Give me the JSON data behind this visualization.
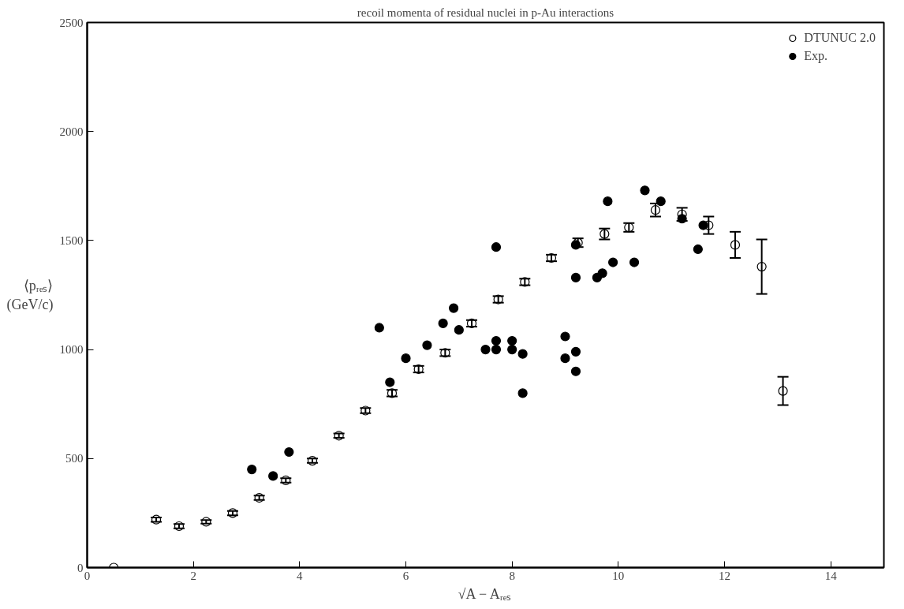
{
  "chart_data": {
    "type": "scatter",
    "title": "recoil momenta of residual nuclei in p-Au interactions",
    "xlabel": "√A − Aᵣₑₛ",
    "ylabel": "⟨pᵣₑₛ⟩\n(GeV/c)",
    "xlim": [
      0,
      15
    ],
    "ylim": [
      0,
      2500
    ],
    "xticks": [
      0,
      2,
      4,
      6,
      8,
      10,
      12,
      14
    ],
    "yticks": [
      0,
      500,
      1000,
      1500,
      2000,
      2500
    ],
    "legend": "top right",
    "grid": false,
    "marker": "circle",
    "series": [
      {
        "name": "DTUNUC 2.0",
        "color": "#000000",
        "x": [
          0.5,
          1.3,
          1.73,
          2.24,
          2.74,
          3.24,
          3.74,
          4.24,
          4.74,
          5.24,
          5.74,
          6.24,
          6.74,
          7.24,
          7.74,
          8.24,
          8.74,
          9.24,
          9.74,
          10.2,
          10.7,
          11.2,
          11.7,
          12.2,
          12.7,
          13.1
        ],
        "values": [
          0,
          220,
          190,
          210,
          250,
          320,
          400,
          490,
          605,
          720,
          800,
          910,
          985,
          1120,
          1230,
          1310,
          1420,
          1490,
          1530,
          1560,
          1640,
          1620,
          1570,
          1480,
          1380,
          810
        ],
        "errors": [
          null,
          10,
          10,
          8,
          10,
          10,
          10,
          10,
          10,
          12,
          15,
          15,
          15,
          15,
          15,
          15,
          15,
          20,
          25,
          20,
          30,
          30,
          40,
          60,
          125,
          65
        ]
      },
      {
        "name": "Exp.",
        "color": "#000000",
        "x": [
          3.1,
          3.5,
          3.8,
          5.5,
          5.7,
          6.0,
          6.4,
          6.7,
          6.9,
          7.0,
          7.5,
          7.7,
          7.7,
          7.7,
          8.0,
          8.0,
          8.2,
          8.2,
          9.0,
          9.0,
          9.2,
          9.2,
          9.2,
          9.2,
          9.6,
          9.7,
          9.8,
          9.9,
          10.3,
          10.5,
          10.8,
          11.2,
          11.5,
          11.6
        ],
        "values": [
          450,
          420,
          530,
          1100,
          850,
          960,
          1020,
          1120,
          1190,
          1090,
          1000,
          1470,
          1000,
          1040,
          1000,
          1040,
          980,
          800,
          1060,
          960,
          990,
          900,
          1480,
          1330,
          1330,
          1350,
          1680,
          1400,
          1400,
          1730,
          1680,
          1600,
          1460,
          1570
        ]
      }
    ]
  }
}
